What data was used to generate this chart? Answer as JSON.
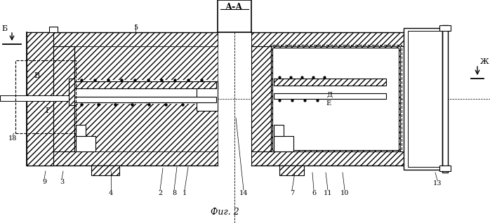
{
  "bg": "#ffffff",
  "labels": {
    "A_A": "А-А",
    "Б": "Б",
    "В": "В",
    "Г": "Г",
    "Д": "Д",
    "Е": "Е",
    "Ж": "Ж",
    "fig": "Фиг. 2",
    "n1": "1",
    "n2": "2",
    "n3": "3",
    "n4": "4",
    "n5": "5",
    "n6": "6",
    "n7": "7",
    "n8": "8",
    "n9": "9",
    "n10": "10",
    "n11": "11",
    "n13": "13",
    "n14": "14",
    "n18": "18"
  }
}
